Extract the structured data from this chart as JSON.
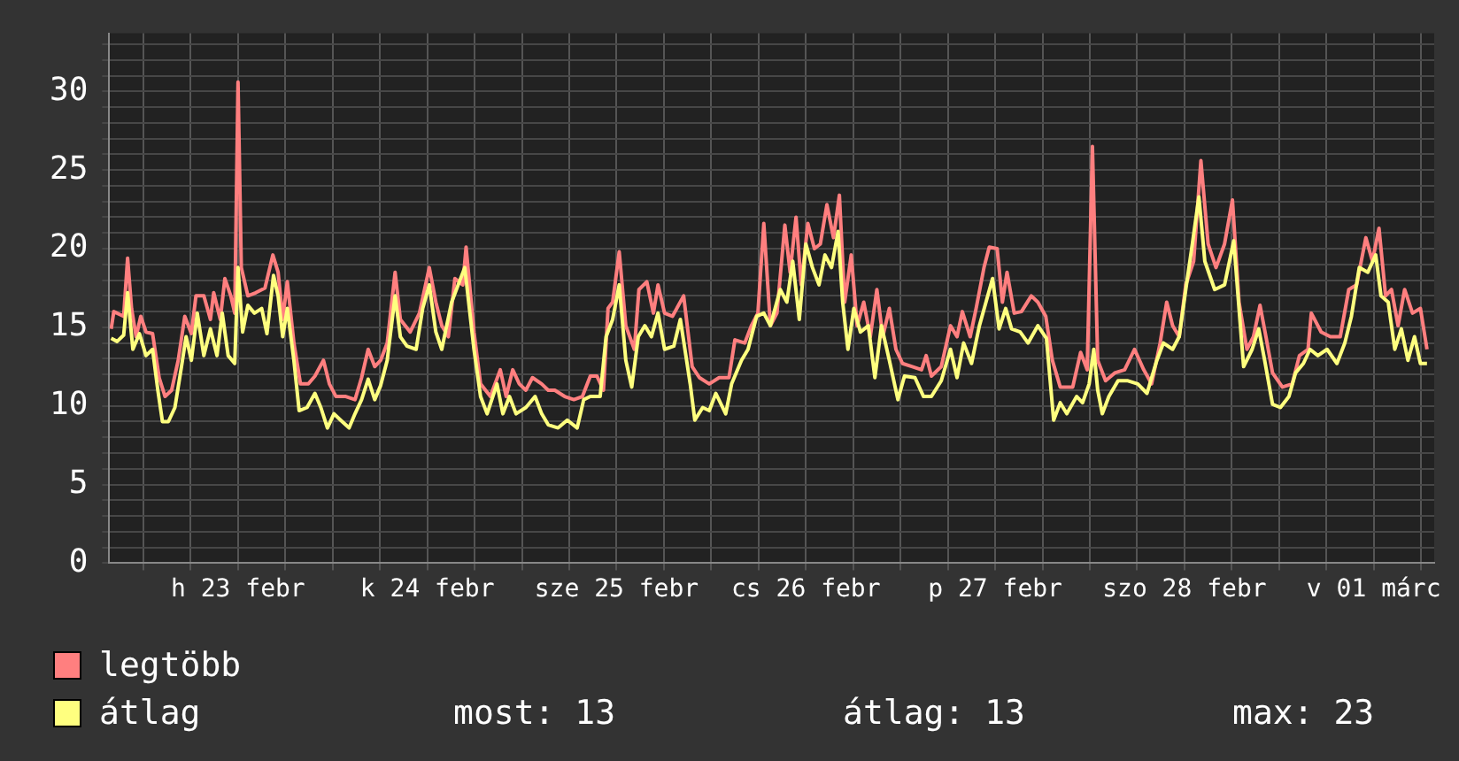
{
  "chart_data": {
    "type": "line",
    "xlim": [
      "--02-22T19:40",
      "--03-01T19:40"
    ],
    "ylim": [
      0,
      33.7
    ],
    "xticks": [
      {
        "value": "--02-23T00:00",
        "label": null
      },
      {
        "value": "--02-23T06:00",
        "label": null
      },
      {
        "value": "--02-23T12:00",
        "label": "h 23 febr"
      },
      {
        "value": "--02-23T18:00",
        "label": null
      },
      {
        "value": "--02-24T00:00",
        "label": null
      },
      {
        "value": "--02-24T06:00",
        "label": null
      },
      {
        "value": "--02-24T12:00",
        "label": "k 24 febr"
      },
      {
        "value": "--02-24T18:00",
        "label": null
      },
      {
        "value": "--02-25T00:00",
        "label": null
      },
      {
        "value": "--02-25T06:00",
        "label": null
      },
      {
        "value": "--02-25T12:00",
        "label": "sze 25 febr"
      },
      {
        "value": "--02-25T18:00",
        "label": null
      },
      {
        "value": "--02-26T00:00",
        "label": null
      },
      {
        "value": "--02-26T06:00",
        "label": null
      },
      {
        "value": "--02-26T12:00",
        "label": "cs 26 febr"
      },
      {
        "value": "--02-26T18:00",
        "label": null
      },
      {
        "value": "--02-27T00:00",
        "label": null
      },
      {
        "value": "--02-27T06:00",
        "label": null
      },
      {
        "value": "--02-27T12:00",
        "label": "p 27 febr"
      },
      {
        "value": "--02-27T18:00",
        "label": null
      },
      {
        "value": "--02-28T00:00",
        "label": null
      },
      {
        "value": "--02-28T06:00",
        "label": null
      },
      {
        "value": "--02-28T12:00",
        "label": "szo 28 febr"
      },
      {
        "value": "--02-28T18:00",
        "label": null
      },
      {
        "value": "--03-01T00:00",
        "label": null
      },
      {
        "value": "--03-01T06:00",
        "label": null
      },
      {
        "value": "--03-01T12:00",
        "label": "v 01 márc"
      },
      {
        "value": "--03-01T18:00",
        "label": null
      }
    ],
    "yticks": [
      0,
      {
        "value": 1,
        "label": null
      },
      {
        "value": 2,
        "label": null
      },
      {
        "value": 3,
        "label": null
      },
      {
        "value": 4,
        "label": null
      },
      5,
      {
        "value": 6,
        "label": null
      },
      {
        "value": 7,
        "label": null
      },
      {
        "value": 8,
        "label": null
      },
      {
        "value": 9,
        "label": null
      },
      10,
      {
        "value": 11,
        "label": null
      },
      {
        "value": 12,
        "label": null
      },
      {
        "value": 13,
        "label": null
      },
      {
        "value": 14,
        "label": null
      },
      15,
      {
        "value": 16,
        "label": null
      },
      {
        "value": 17,
        "label": null
      },
      {
        "value": 18,
        "label": null
      },
      {
        "value": 19,
        "label": null
      },
      20,
      {
        "value": 21,
        "label": null
      },
      {
        "value": 22,
        "label": null
      },
      {
        "value": 23,
        "label": null
      },
      {
        "value": 24,
        "label": null
      },
      25,
      {
        "value": 26,
        "label": null
      },
      {
        "value": 27,
        "label": null
      },
      {
        "value": 28,
        "label": null
      },
      {
        "value": 29,
        "label": null
      },
      30,
      {
        "value": 31,
        "label": null
      },
      {
        "value": 32,
        "label": null
      },
      {
        "value": 33,
        "label": null
      }
    ],
    "grid": true,
    "legend": "bottom",
    "marker": "none",
    "line_style": "solid",
    "annotations": [
      "most: 13",
      "átlag: 13",
      "max: 23"
    ],
    "series": [
      {
        "name": "legtöbb",
        "color": "#ff7f7f",
        "x": [
          "--02-22T19:55",
          "--02-22T20:15",
          "--02-22T21:30",
          "--02-22T22:00",
          "--02-22T22:30",
          "--02-22T23:05",
          "--02-22T23:40",
          "--02-23T00:20",
          "--02-23T01:10",
          "--02-23T02:00",
          "--02-23T02:45",
          "--02-23T03:35",
          "--02-23T04:25",
          "--02-23T05:15",
          "--02-23T06:05",
          "--02-23T06:40",
          "--02-23T07:40",
          "--02-23T08:30",
          "--02-23T08:55",
          "--02-23T09:45",
          "--02-23T10:20",
          "--02-23T11:05",
          "--02-23T11:35",
          "--02-23T12:00",
          "--02-23T12:25",
          "--02-23T13:15",
          "--02-23T14:15",
          "--02-23T15:25",
          "--02-23T16:25",
          "--02-23T17:05",
          "--02-23T17:40",
          "--02-23T18:15",
          "--02-23T19:05",
          "--02-23T19:55",
          "--02-23T20:55",
          "--02-23T21:45",
          "--02-23T22:50",
          "--02-23T23:35",
          "--02-24T00:25",
          "--02-24T01:40",
          "--02-24T02:50",
          "--02-24T03:40",
          "--02-24T04:30",
          "--02-24T05:20",
          "--02-24T06:05",
          "--02-24T06:55",
          "--02-24T07:55",
          "--02-24T08:35",
          "--02-24T09:50",
          "--02-24T11:00",
          "--02-24T12:15",
          "--02-24T13:05",
          "--02-24T13:50",
          "--02-24T14:40",
          "--02-24T15:30",
          "--02-24T16:30",
          "--02-24T16:55",
          "--02-24T17:55",
          "--02-24T18:45",
          "--02-24T20:00",
          "--02-24T21:15",
          "--02-24T22:00",
          "--02-24T22:50",
          "--02-24T23:40",
          "--02-25T00:30",
          "--02-25T01:20",
          "--02-25T02:30",
          "--02-25T03:20",
          "--02-25T04:10",
          "--02-25T05:25",
          "--02-25T06:35",
          "--02-25T07:40",
          "--02-25T08:40",
          "--02-25T09:30",
          "--02-25T10:20",
          "--02-25T10:55",
          "--02-25T11:30",
          "--02-25T12:20",
          "--02-25T13:10",
          "--02-25T14:15",
          "--02-25T14:50",
          "--02-25T15:50",
          "--02-25T16:40",
          "--02-25T17:15",
          "--02-25T18:05",
          "--02-25T19:05",
          "--02-25T20:30",
          "--02-25T21:35",
          "--02-25T22:30",
          "--02-25T23:45",
          "--02-26T01:00",
          "--02-26T02:15",
          "--02-26T03:00",
          "--02-26T04:15",
          "--02-26T05:05",
          "--02-26T05:55",
          "--02-26T06:40",
          "--02-26T07:30",
          "--02-26T08:20",
          "--02-26T09:20",
          "--02-26T10:00",
          "--02-26T10:45",
          "--02-26T11:25",
          "--02-26T12:15",
          "--02-26T13:05",
          "--02-26T13:50",
          "--02-26T14:40",
          "--02-26T15:30",
          "--02-26T16:15",
          "--02-26T16:55",
          "--02-26T17:45",
          "--02-26T18:30",
          "--02-26T19:20",
          "--02-26T20:10",
          "--02-26T21:00",
          "--02-26T21:45",
          "--02-26T22:35",
          "--02-26T23:25",
          "--02-27T00:15",
          "--02-27T01:30",
          "--02-27T02:40",
          "--02-27T03:15",
          "--02-27T03:55",
          "--02-27T05:10",
          "--02-27T06:20",
          "--02-27T07:10",
          "--02-27T07:50",
          "--02-27T08:50",
          "--02-27T09:35",
          "--02-27T10:35",
          "--02-27T11:15",
          "--02-27T12:15",
          "--02-27T12:55",
          "--02-27T13:30",
          "--02-27T14:25",
          "--02-27T15:20",
          "--02-27T16:35",
          "--02-27T17:25",
          "--02-27T18:25",
          "--02-27T19:15",
          "--02-27T20:15",
          "--02-27T21:50",
          "--02-27T22:50",
          "--02-27T23:40",
          "--02-28T00:20",
          "--02-28T01:00",
          "--02-28T02:00",
          "--02-28T03:10",
          "--02-28T04:25",
          "--02-28T05:40",
          "--02-28T06:50",
          "--02-28T07:50",
          "--02-28T08:55",
          "--02-28T09:45",
          "--02-28T10:30",
          "--02-28T11:20",
          "--02-28T12:10",
          "--02-28T13:10",
          "--02-28T14:05",
          "--02-28T15:00",
          "--02-28T16:00",
          "--02-28T17:05",
          "--02-28T18:05",
          "--02-28T18:55",
          "--02-28T19:55",
          "--02-28T20:45",
          "--02-28T21:35",
          "--02-28T22:20",
          "--02-28T23:10",
          "--03-01T00:25",
          "--03-01T01:40",
          "--03-01T02:35",
          "--03-01T03:40",
          "--03-01T04:05",
          "--03-01T05:20",
          "--03-01T06:30",
          "--03-01T07:45",
          "--03-01T08:50",
          "--03-01T09:50",
          "--03-01T11:00",
          "--03-01T11:50",
          "--03-01T12:40",
          "--03-01T13:30",
          "--03-01T14:15",
          "--03-01T15:05",
          "--03-01T15:55",
          "--03-01T16:55",
          "--03-01T17:55",
          "--03-01T18:45"
        ],
        "values": [
          14.9,
          16.0,
          15.7,
          19.4,
          16.2,
          14.4,
          15.7,
          14.7,
          14.6,
          11.8,
          10.6,
          11.0,
          12.9,
          15.7,
          14.6,
          17.0,
          17.0,
          15.5,
          17.2,
          15.5,
          18.1,
          17.0,
          15.9,
          30.6,
          18.8,
          17.0,
          17.2,
          17.5,
          19.6,
          18.5,
          15.5,
          17.9,
          14.0,
          11.4,
          11.4,
          11.9,
          12.9,
          11.4,
          10.6,
          10.6,
          10.4,
          11.8,
          13.6,
          12.5,
          12.9,
          14.0,
          18.5,
          15.5,
          14.7,
          15.9,
          18.8,
          16.6,
          15.1,
          14.4,
          18.1,
          17.7,
          20.1,
          14.7,
          11.4,
          10.6,
          12.3,
          10.6,
          12.3,
          11.4,
          11.0,
          11.8,
          11.4,
          11.0,
          11.0,
          10.6,
          10.4,
          10.6,
          11.9,
          11.9,
          11.0,
          16.2,
          16.6,
          19.8,
          15.1,
          13.6,
          17.4,
          17.9,
          15.9,
          17.7,
          15.9,
          15.7,
          17.0,
          12.5,
          11.8,
          11.4,
          11.8,
          11.8,
          14.2,
          14.0,
          15.1,
          15.9,
          21.6,
          15.1,
          15.9,
          21.5,
          18.5,
          22.0,
          17.7,
          21.6,
          20.0,
          20.3,
          22.8,
          20.7,
          23.4,
          16.6,
          19.6,
          15.1,
          16.6,
          14.4,
          17.4,
          14.4,
          16.2,
          13.6,
          12.7,
          12.5,
          12.3,
          13.2,
          11.9,
          12.5,
          15.1,
          14.4,
          16.0,
          14.4,
          16.2,
          18.8,
          20.1,
          20.0,
          16.6,
          18.5,
          15.9,
          16.0,
          17.0,
          16.6,
          15.7,
          12.9,
          11.2,
          11.2,
          13.4,
          12.3,
          26.5,
          12.9,
          11.6,
          12.1,
          12.3,
          13.6,
          12.3,
          11.4,
          14.0,
          16.6,
          15.1,
          14.4,
          17.7,
          19.2,
          25.6,
          20.3,
          18.8,
          20.3,
          23.1,
          16.6,
          13.6,
          14.4,
          16.4,
          14.4,
          12.1,
          11.2,
          11.4,
          13.2,
          13.6,
          15.9,
          14.7,
          14.4,
          14.4,
          17.4,
          17.7,
          20.7,
          19.2,
          21.3,
          17.0,
          17.4,
          15.1,
          17.4,
          15.9,
          16.2,
          13.6
        ]
      },
      {
        "name": "átlag",
        "color": "#ffff7f",
        "x": [
          "--02-22T19:55",
          "--02-22T20:40",
          "--02-22T21:30",
          "--02-22T22:00",
          "--02-22T22:40",
          "--02-22T23:30",
          "--02-23T00:20",
          "--02-23T01:10",
          "--02-23T01:50",
          "--02-23T02:25",
          "--02-23T03:10",
          "--02-23T04:00",
          "--02-23T04:50",
          "--02-23T05:25",
          "--02-23T06:05",
          "--02-23T06:50",
          "--02-23T07:40",
          "--02-23T08:30",
          "--02-23T09:20",
          "--02-23T10:00",
          "--02-23T10:45",
          "--02-23T11:35",
          "--02-23T12:00",
          "--02-23T12:35",
          "--02-23T13:15",
          "--02-23T14:05",
          "--02-23T15:00",
          "--02-23T15:40",
          "--02-23T16:30",
          "--02-23T17:05",
          "--02-23T17:40",
          "--02-23T18:15",
          "--02-23T19:05",
          "--02-23T19:45",
          "--02-23T20:45",
          "--02-23T21:45",
          "--02-23T22:30",
          "--02-23T23:20",
          "--02-24T00:10",
          "--02-24T01:00",
          "--02-24T02:05",
          "--02-24T02:50",
          "--02-24T03:40",
          "--02-24T04:30",
          "--02-24T05:20",
          "--02-24T06:05",
          "--02-24T06:55",
          "--02-24T07:55",
          "--02-24T08:35",
          "--02-24T09:25",
          "--02-24T10:35",
          "--02-24T11:25",
          "--02-24T12:15",
          "--02-24T13:05",
          "--02-24T13:50",
          "--02-24T15:05",
          "--02-24T15:55",
          "--02-24T16:45",
          "--02-24T17:55",
          "--02-24T18:45",
          "--02-24T19:35",
          "--02-24T20:50",
          "--02-24T21:35",
          "--02-24T22:25",
          "--02-24T23:15",
          "--02-25T00:30",
          "--02-25T01:40",
          "--02-25T02:30",
          "--02-25T03:20",
          "--02-25T04:35",
          "--02-25T05:45",
          "--02-25T07:00",
          "--02-25T07:50",
          "--02-25T08:40",
          "--02-25T09:55",
          "--02-25T10:40",
          "--02-25T11:30",
          "--02-25T12:20",
          "--02-25T13:10",
          "--02-25T13:55",
          "--02-25T14:45",
          "--02-25T15:35",
          "--02-25T16:25",
          "--02-25T17:15",
          "--02-25T18:05",
          "--02-25T19:15",
          "--02-25T20:05",
          "--02-25T21:20",
          "--02-25T21:55",
          "--02-25T22:55",
          "--02-25T23:45",
          "--02-26T00:35",
          "--02-26T01:50",
          "--02-26T02:35",
          "--02-26T03:50",
          "--02-26T04:40",
          "--02-26T05:45",
          "--02-26T06:40",
          "--02-26T07:30",
          "--02-26T08:45",
          "--02-26T09:35",
          "--02-26T10:20",
          "--02-26T11:10",
          "--02-26T12:00",
          "--02-26T12:50",
          "--02-26T13:40",
          "--02-26T14:25",
          "--02-26T15:15",
          "--02-26T16:05",
          "--02-26T16:40",
          "--02-26T17:20",
          "--02-26T18:05",
          "--02-26T18:55",
          "--02-26T19:55",
          "--02-26T20:45",
          "--02-26T21:35",
          "--02-26T22:35",
          "--02-26T23:40",
          "--02-27T00:30",
          "--02-27T01:50",
          "--02-27T02:55",
          "--02-27T03:55",
          "--02-27T05:10",
          "--02-27T06:20",
          "--02-27T07:10",
          "--02-27T08:00",
          "--02-27T09:00",
          "--02-27T10:00",
          "--02-27T10:50",
          "--02-27T11:40",
          "--02-27T12:30",
          "--02-27T13:20",
          "--02-27T14:05",
          "--02-27T15:10",
          "--02-27T16:10",
          "--02-27T17:25",
          "--02-27T18:30",
          "--02-27T19:25",
          "--02-27T20:15",
          "--02-27T21:05",
          "--02-27T22:20",
          "--02-27T23:05",
          "--02-27T23:55",
          "--02-28T00:30",
          "--02-28T01:00",
          "--02-28T01:35",
          "--02-28T02:25",
          "--02-28T03:35",
          "--02-28T04:50",
          "--02-28T06:05",
          "--02-28T07:15",
          "--02-28T08:30",
          "--02-28T09:20",
          "--02-28T10:30",
          "--02-28T11:20",
          "--02-28T12:10",
          "--02-28T13:00",
          "--02-28T13:50",
          "--02-28T14:35",
          "--02-28T15:50",
          "--02-28T17:05",
          "--02-28T18:15",
          "--02-28T18:55",
          "--02-28T19:30",
          "--02-28T20:35",
          "--02-28T21:25",
          "--02-28T22:10",
          "--02-28T23:10",
          "--03-01T00:10",
          "--03-01T01:15",
          "--03-01T02:05",
          "--03-01T03:05",
          "--03-01T03:55",
          "--03-01T04:55",
          "--03-01T06:05",
          "--03-01T07:20",
          "--03-01T08:20",
          "--03-01T09:10",
          "--03-01T10:10",
          "--03-01T11:15",
          "--03-01T12:15",
          "--03-01T12:55",
          "--03-01T13:50",
          "--03-01T14:40",
          "--03-01T15:30",
          "--03-01T16:20",
          "--03-01T17:10",
          "--03-01T17:55",
          "--03-01T18:45"
        ],
        "values": [
          14.3,
          14.1,
          14.5,
          17.2,
          13.6,
          14.6,
          13.2,
          13.6,
          11.0,
          9.0,
          9.0,
          9.9,
          12.5,
          14.4,
          12.9,
          15.9,
          13.2,
          14.9,
          13.2,
          15.9,
          13.2,
          12.7,
          18.8,
          14.7,
          16.4,
          15.9,
          16.2,
          14.6,
          18.3,
          17.0,
          14.4,
          16.2,
          12.9,
          9.7,
          9.9,
          10.8,
          9.9,
          8.6,
          9.5,
          9.1,
          8.6,
          9.5,
          10.4,
          11.7,
          10.4,
          11.3,
          12.9,
          17.0,
          14.4,
          13.8,
          13.6,
          16.2,
          17.7,
          14.7,
          13.6,
          16.6,
          17.7,
          18.8,
          13.6,
          10.6,
          9.5,
          11.4,
          9.5,
          10.6,
          9.5,
          9.9,
          10.6,
          9.5,
          8.8,
          8.6,
          9.1,
          8.6,
          10.4,
          10.6,
          10.6,
          14.4,
          15.5,
          17.7,
          12.9,
          11.2,
          14.4,
          15.1,
          14.4,
          15.9,
          13.6,
          13.8,
          15.5,
          11.4,
          9.1,
          9.9,
          9.7,
          10.8,
          9.5,
          11.4,
          12.9,
          13.6,
          15.7,
          15.9,
          15.1,
          17.4,
          16.6,
          19.2,
          15.5,
          20.3,
          18.8,
          17.7,
          19.6,
          18.8,
          21.1,
          16.6,
          13.6,
          16.2,
          14.7,
          15.1,
          11.8,
          15.1,
          12.9,
          10.4,
          11.9,
          11.8,
          10.6,
          10.6,
          11.6,
          13.6,
          11.8,
          14.0,
          12.7,
          15.1,
          16.6,
          18.1,
          14.9,
          16.2,
          14.9,
          14.7,
          14.0,
          15.1,
          14.3,
          9.1,
          10.2,
          9.5,
          10.6,
          10.2,
          11.4,
          13.6,
          11.0,
          9.5,
          10.6,
          11.6,
          11.6,
          11.4,
          10.8,
          12.9,
          14.0,
          13.6,
          14.4,
          17.4,
          20.3,
          23.3,
          19.2,
          17.4,
          17.7,
          20.5,
          16.2,
          12.5,
          13.6,
          14.9,
          12.9,
          10.1,
          9.9,
          10.6,
          12.1,
          12.7,
          13.6,
          13.2,
          13.6,
          12.7,
          14.0,
          15.7,
          18.8,
          18.5,
          19.6,
          17.0,
          16.6,
          13.6,
          14.9,
          12.9,
          14.4,
          12.7,
          12.7
        ]
      }
    ]
  }
}
